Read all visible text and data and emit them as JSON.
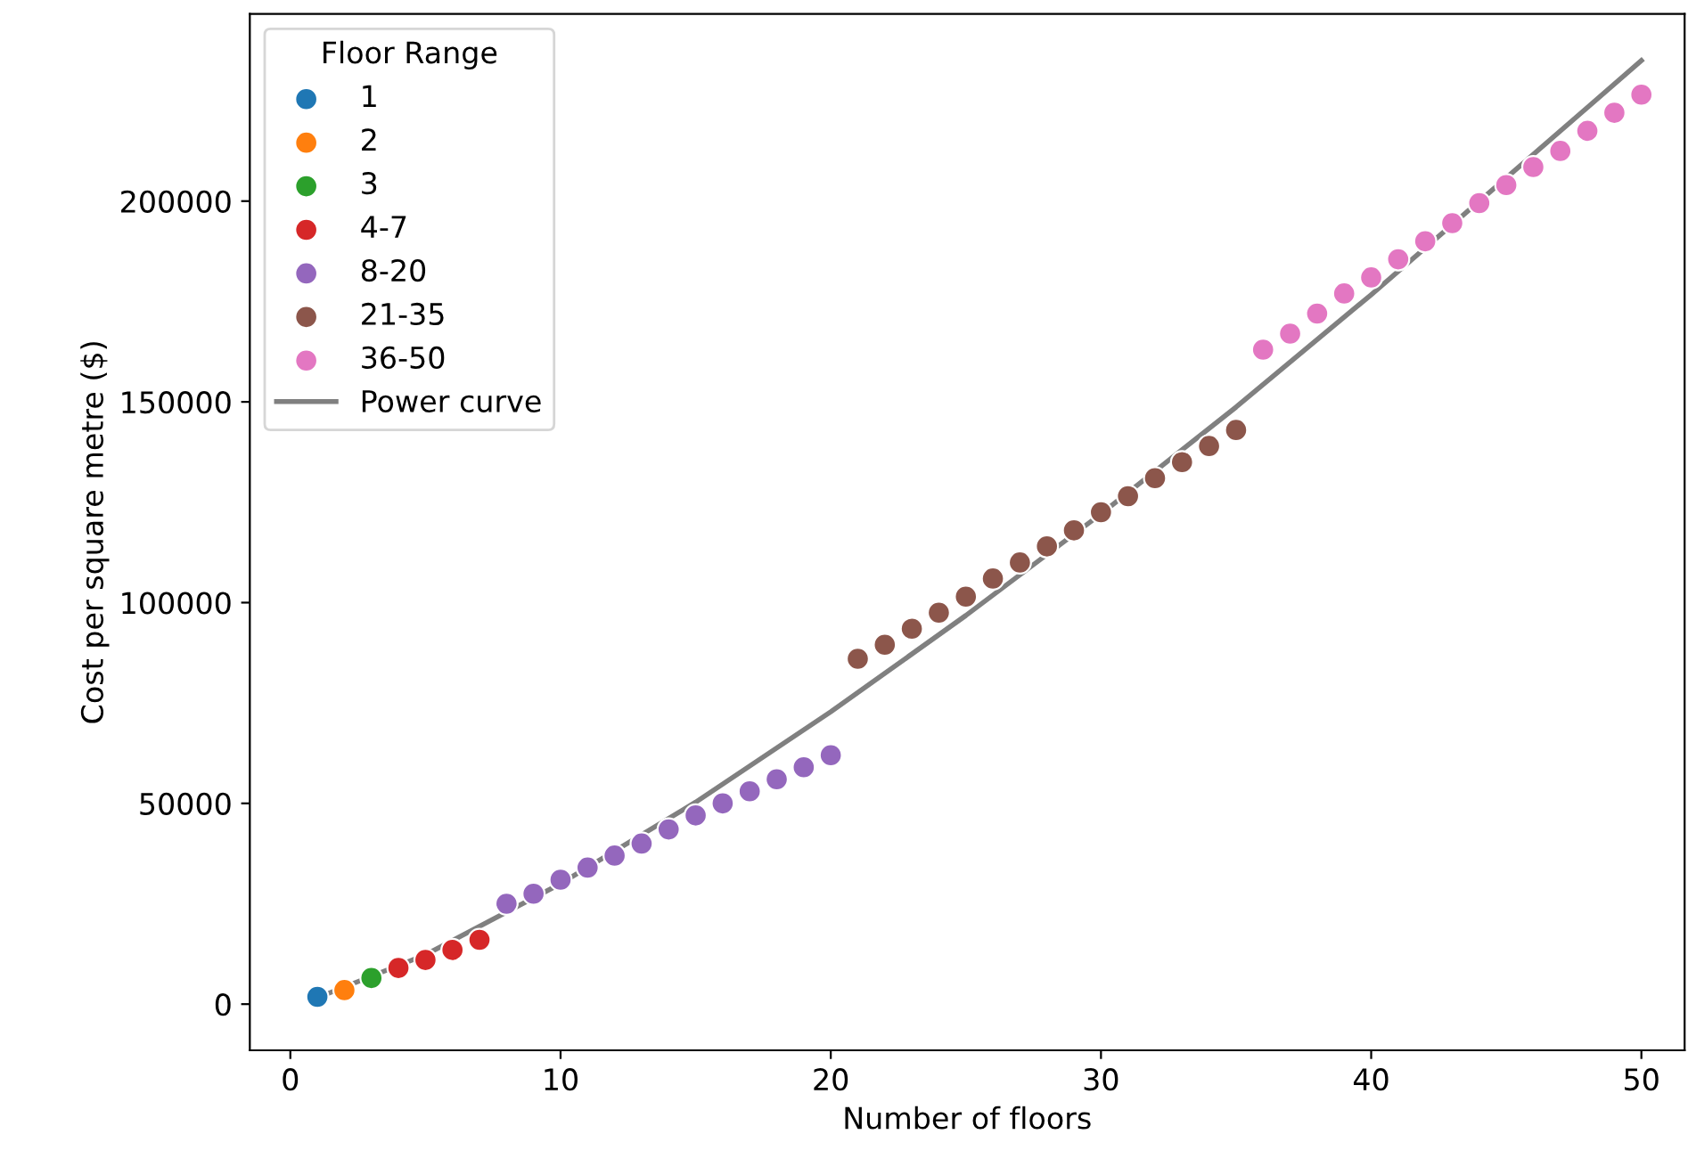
{
  "chart_data": {
    "type": "scatter",
    "xlabel": "Number of floors",
    "ylabel": "Cost per square metre ($)",
    "legend_title": "Floor Range",
    "legend": "top left",
    "grid": false,
    "xlim": [
      -1.5,
      51.6
    ],
    "ylim": [
      -11500,
      246600
    ],
    "xticks": [
      0,
      10,
      20,
      30,
      40,
      50
    ],
    "yticks": [
      0,
      50000,
      100000,
      150000,
      200000
    ],
    "series": [
      {
        "name": "1",
        "color": "#1f77b4",
        "marker": "circle",
        "x": [
          1
        ],
        "values": [
          1800
        ]
      },
      {
        "name": "2",
        "color": "#ff7f0e",
        "marker": "circle",
        "x": [
          2
        ],
        "values": [
          3500
        ]
      },
      {
        "name": "3",
        "color": "#2ca02c",
        "marker": "circle",
        "x": [
          3
        ],
        "values": [
          6500
        ]
      },
      {
        "name": "4-7",
        "color": "#d62728",
        "marker": "circle",
        "x": [
          4,
          5,
          6,
          7
        ],
        "values": [
          9000,
          11000,
          13500,
          16000
        ]
      },
      {
        "name": "8-20",
        "color": "#9467bd",
        "marker": "circle",
        "x": [
          8,
          9,
          10,
          11,
          12,
          13,
          14,
          15,
          16,
          17,
          18,
          19,
          20
        ],
        "values": [
          25000,
          27500,
          31000,
          34000,
          37000,
          40000,
          43500,
          47000,
          50000,
          53000,
          56000,
          59000,
          62000
        ]
      },
      {
        "name": "21-35",
        "color": "#8c564b",
        "marker": "circle",
        "x": [
          21,
          22,
          23,
          24,
          25,
          26,
          27,
          28,
          29,
          30,
          31,
          32,
          33,
          34,
          35
        ],
        "values": [
          86000,
          89500,
          93500,
          97500,
          101500,
          106000,
          110000,
          114000,
          118000,
          122500,
          126500,
          131000,
          135000,
          139000,
          143000
        ]
      },
      {
        "name": "36-50",
        "color": "#e377c2",
        "marker": "circle",
        "x": [
          36,
          37,
          38,
          39,
          40,
          41,
          42,
          43,
          44,
          45,
          46,
          47,
          48,
          49,
          50
        ],
        "values": [
          163000,
          167000,
          172000,
          177000,
          181000,
          185500,
          190000,
          194500,
          199500,
          204000,
          208500,
          212500,
          217500,
          222000,
          226500
        ]
      },
      {
        "name": "Power curve",
        "type": "line",
        "marker": "none",
        "color": "#808080",
        "x": [
          1,
          5,
          10,
          15,
          20,
          25,
          30,
          35,
          40,
          45,
          50
        ],
        "values": [
          1600,
          12300,
          30000,
          50300,
          72800,
          96800,
          122100,
          148700,
          176700,
          205800,
          235000
        ]
      }
    ]
  }
}
